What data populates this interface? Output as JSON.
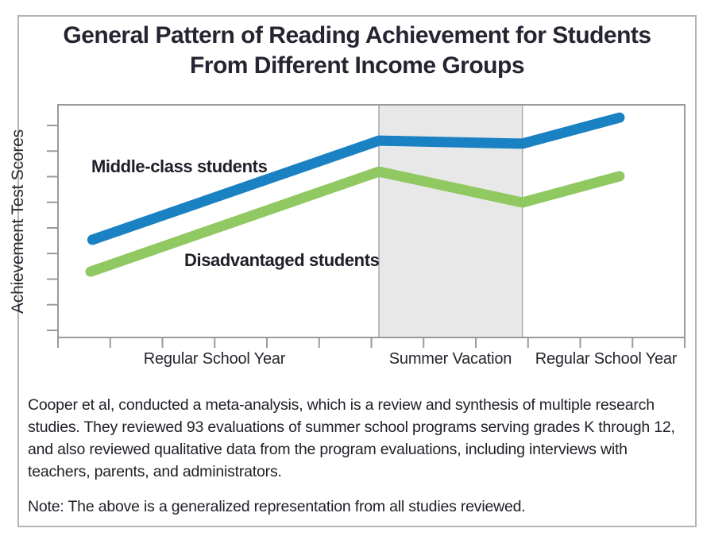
{
  "figure": {
    "title_line1": "General Pattern of Reading Achievement for Students",
    "title_line2": "From Different Income Groups",
    "caption": "Cooper et al, conducted a meta-analysis, which is a review and synthesis of multiple research studies. They reviewed 93 evaluations of summer school programs serving grades K through 12, and also reviewed qualitative data from the program evaluations, including interviews with teachers, parents, and administrators.",
    "note": "Note: The above is a generalized representation from all studies reviewed."
  },
  "chart_data": {
    "type": "line",
    "title": "General Pattern of Reading Achievement for Students From Different Income Groups",
    "xlabel": "",
    "ylabel": "Achievement Test Scores",
    "axes_numeric_labels": false,
    "y_tick_count": 9,
    "x_tick_count": 13,
    "grid": false,
    "legend_position": "inline-labels-on-chart",
    "x_sections": [
      {
        "label": "Regular School Year",
        "x_start": 0.0,
        "x_end": 0.512,
        "shaded": false
      },
      {
        "label": "Summer Vacation",
        "x_start": 0.512,
        "x_end": 0.741,
        "shaded": true
      },
      {
        "label": "Regular School Year",
        "x_start": 0.741,
        "x_end": 1.0,
        "shaded": false
      }
    ],
    "y_axis_note": "qualitative axis, no numeric ticks; values are fractions of plot height",
    "series": [
      {
        "name": "Middle-class students",
        "color": "#1a81c2",
        "points": [
          [
            0.055,
            0.42
          ],
          [
            0.512,
            0.846
          ],
          [
            0.741,
            0.833
          ],
          [
            0.896,
            0.945
          ]
        ]
      },
      {
        "name": "Disadvantaged students",
        "color": "#90c861",
        "points": [
          [
            0.052,
            0.283
          ],
          [
            0.512,
            0.713
          ],
          [
            0.741,
            0.58
          ],
          [
            0.896,
            0.693
          ]
        ]
      }
    ]
  },
  "colors": {
    "blue_line": "#1a81c2",
    "green_line": "#90c861",
    "shaded_region": "#e8e8e8",
    "shaded_region_border": "#aaaaaa",
    "axis": "#9a9a9a",
    "outer_frame": "#b3b3b3",
    "text": "#24222c"
  }
}
